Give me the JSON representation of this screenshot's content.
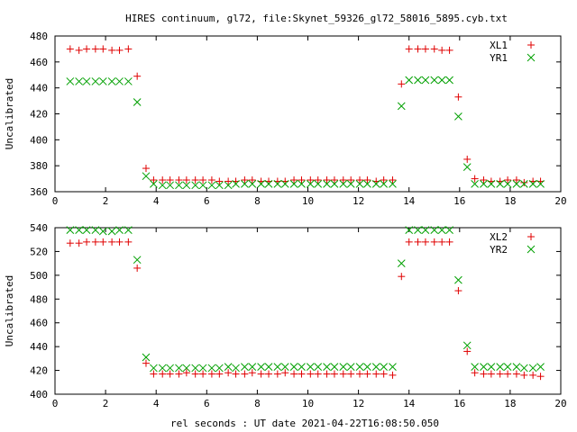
{
  "title": "HIRES continuum, gl72, file:Skynet_59326_gl72_58016_5895.cyb.txt",
  "xlabel": "rel seconds : UT date 2021-04-22T16:08:50.050",
  "colors": {
    "red": "#e00000",
    "green": "#00a000"
  },
  "chart_data": [
    {
      "type": "scatter",
      "ylabel": "Uncalibrated",
      "xlim": [
        0,
        20
      ],
      "ylim": [
        360,
        480
      ],
      "xticks": [
        "0",
        "2",
        "4",
        "6",
        "8",
        "10",
        "12",
        "14",
        "16",
        "18",
        "20"
      ],
      "yticks": [
        "360",
        "380",
        "400",
        "420",
        "440",
        "460",
        "480"
      ],
      "grid": false,
      "legend_position": "top-right",
      "series": [
        {
          "name": "XL1",
          "marker": "plus",
          "color": "#e00000",
          "x": [
            0.6,
            0.95,
            1.25,
            1.6,
            1.9,
            2.25,
            2.55,
            2.9,
            3.25,
            3.6,
            3.9,
            4.25,
            4.55,
            4.9,
            5.2,
            5.55,
            5.85,
            6.2,
            6.5,
            6.85,
            7.15,
            7.5,
            7.8,
            8.15,
            8.45,
            8.8,
            9.1,
            9.45,
            9.75,
            10.1,
            10.4,
            10.75,
            11.05,
            11.4,
            11.7,
            12.05,
            12.35,
            12.7,
            13.0,
            13.35,
            13.7,
            14.0,
            14.35,
            14.65,
            15.0,
            15.3,
            15.6,
            15.95,
            16.3,
            16.6,
            16.95,
            17.25,
            17.6,
            17.9,
            18.25,
            18.55,
            18.9,
            19.2
          ],
          "y": [
            470,
            469,
            470,
            470,
            470,
            469,
            469,
            470,
            449,
            378,
            369,
            369,
            369,
            369,
            369,
            369,
            369,
            369,
            368,
            368,
            368,
            369,
            369,
            368,
            368,
            368,
            368,
            369,
            369,
            369,
            369,
            369,
            369,
            369,
            369,
            369,
            369,
            368,
            369,
            369,
            443,
            470,
            470,
            470,
            470,
            469,
            469,
            433,
            385,
            370,
            369,
            368,
            368,
            369,
            369,
            367,
            368,
            368
          ],
          "x_note": ""
        },
        {
          "name": "YR1",
          "marker": "cross",
          "color": "#00a000",
          "x": [
            0.6,
            0.95,
            1.25,
            1.6,
            1.9,
            2.25,
            2.55,
            2.9,
            3.25,
            3.6,
            3.9,
            4.25,
            4.55,
            4.9,
            5.2,
            5.55,
            5.85,
            6.2,
            6.5,
            6.85,
            7.15,
            7.5,
            7.8,
            8.15,
            8.45,
            8.8,
            9.1,
            9.45,
            9.75,
            10.1,
            10.4,
            10.75,
            11.05,
            11.4,
            11.7,
            12.05,
            12.35,
            12.7,
            13.0,
            13.35,
            13.7,
            14.0,
            14.35,
            14.65,
            15.0,
            15.3,
            15.6,
            15.95,
            16.3,
            16.6,
            16.95,
            17.25,
            17.6,
            17.9,
            18.25,
            18.55,
            18.9,
            19.2
          ],
          "y": [
            445,
            445,
            445,
            445,
            445,
            445,
            445,
            445,
            429,
            372,
            366,
            365,
            365,
            365,
            365,
            365,
            365,
            365,
            365,
            365,
            366,
            366,
            366,
            366,
            366,
            366,
            366,
            366,
            366,
            366,
            366,
            366,
            366,
            366,
            366,
            366,
            366,
            366,
            366,
            366,
            426,
            446,
            446,
            446,
            446,
            446,
            446,
            418,
            379,
            366,
            366,
            366,
            366,
            366,
            366,
            366,
            366,
            366
          ]
        }
      ]
    },
    {
      "type": "scatter",
      "ylabel": "Uncalibrated",
      "xlim": [
        0,
        20
      ],
      "ylim": [
        400,
        540
      ],
      "xticks": [
        "0",
        "2",
        "4",
        "6",
        "8",
        "10",
        "12",
        "14",
        "16",
        "18",
        "20"
      ],
      "yticks": [
        "400",
        "420",
        "440",
        "460",
        "480",
        "500",
        "520",
        "540"
      ],
      "grid": false,
      "legend_position": "top-right",
      "series": [
        {
          "name": "XL2",
          "marker": "plus",
          "color": "#e00000",
          "x": [
            0.6,
            0.95,
            1.25,
            1.6,
            1.9,
            2.25,
            2.55,
            2.9,
            3.25,
            3.6,
            3.9,
            4.25,
            4.55,
            4.9,
            5.2,
            5.55,
            5.85,
            6.2,
            6.5,
            6.85,
            7.15,
            7.5,
            7.8,
            8.15,
            8.45,
            8.8,
            9.1,
            9.45,
            9.75,
            10.1,
            10.4,
            10.75,
            11.05,
            11.4,
            11.7,
            12.05,
            12.35,
            12.7,
            13.0,
            13.35,
            13.7,
            14.0,
            14.35,
            14.65,
            15.0,
            15.3,
            15.6,
            15.95,
            16.3,
            16.6,
            16.95,
            17.25,
            17.6,
            17.9,
            18.25,
            18.55,
            18.9,
            19.2
          ],
          "y": [
            527,
            527,
            528,
            528,
            528,
            528,
            528,
            528,
            506,
            426,
            417,
            417,
            417,
            417,
            418,
            417,
            417,
            417,
            417,
            418,
            417,
            417,
            418,
            417,
            417,
            417,
            418,
            417,
            417,
            417,
            417,
            417,
            417,
            417,
            417,
            417,
            417,
            417,
            417,
            416,
            499,
            528,
            528,
            528,
            528,
            528,
            528,
            487,
            436,
            418,
            417,
            417,
            417,
            417,
            417,
            416,
            416,
            415
          ]
        },
        {
          "name": "YR2",
          "marker": "cross",
          "color": "#00a000",
          "x": [
            0.6,
            0.95,
            1.25,
            1.6,
            1.9,
            2.25,
            2.55,
            2.9,
            3.25,
            3.6,
            3.9,
            4.25,
            4.55,
            4.9,
            5.2,
            5.55,
            5.85,
            6.2,
            6.5,
            6.85,
            7.15,
            7.5,
            7.8,
            8.15,
            8.45,
            8.8,
            9.1,
            9.45,
            9.75,
            10.1,
            10.4,
            10.75,
            11.05,
            11.4,
            11.7,
            12.05,
            12.35,
            12.7,
            13.0,
            13.35,
            13.7,
            14.0,
            14.35,
            14.65,
            15.0,
            15.3,
            15.6,
            15.95,
            16.3,
            16.6,
            16.95,
            17.25,
            17.6,
            17.9,
            18.25,
            18.55,
            18.9,
            19.2
          ],
          "y": [
            538,
            538,
            538,
            538,
            537,
            537,
            538,
            538,
            513,
            431,
            422,
            422,
            422,
            422,
            422,
            422,
            422,
            422,
            422,
            423,
            422,
            423,
            423,
            423,
            423,
            423,
            423,
            423,
            423,
            423,
            423,
            423,
            423,
            423,
            423,
            423,
            423,
            423,
            423,
            423,
            510,
            538,
            538,
            538,
            538,
            538,
            538,
            496,
            441,
            423,
            423,
            423,
            423,
            423,
            423,
            422,
            422,
            423
          ]
        }
      ]
    }
  ]
}
